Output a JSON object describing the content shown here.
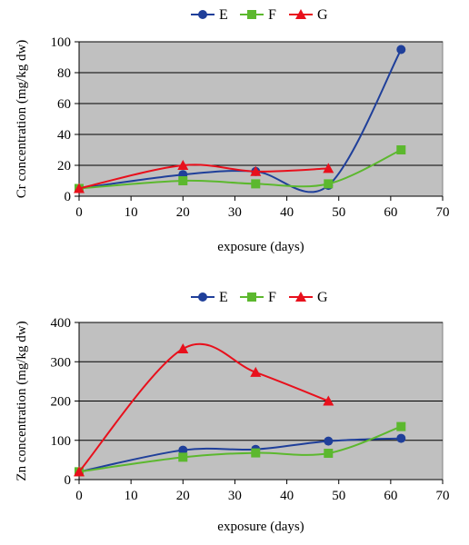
{
  "chart_data": [
    {
      "type": "line",
      "title": "",
      "xlabel": "exposure (days)",
      "ylabel": "Cr concentration (mg/kg dw)",
      "xlim": [
        0,
        70
      ],
      "ylim": [
        0,
        100
      ],
      "xticks": [
        "0",
        "10",
        "20",
        "30",
        "40",
        "50",
        "60",
        "70"
      ],
      "yticks": [
        "0",
        "20",
        "40",
        "60",
        "80",
        "100"
      ],
      "grid": true,
      "legend_position": "top",
      "plot_background": "#c0c0c0",
      "series": [
        {
          "name": "E",
          "color": "#1f3f9a",
          "marker": "circle",
          "x": [
            0,
            20,
            34,
            48,
            62
          ],
          "y": [
            5,
            14,
            16,
            7,
            95
          ]
        },
        {
          "name": "F",
          "color": "#5cb82e",
          "marker": "square",
          "x": [
            0,
            20,
            34,
            48,
            62
          ],
          "y": [
            5,
            10,
            8,
            8,
            30
          ]
        },
        {
          "name": "G",
          "color": "#e8101c",
          "marker": "triangle",
          "x": [
            0,
            20,
            34,
            48
          ],
          "y": [
            5,
            20,
            16,
            18
          ]
        }
      ]
    },
    {
      "type": "line",
      "title": "",
      "xlabel": "exposure (days)",
      "ylabel": "Zn concentration (mg/kg dw)",
      "xlim": [
        0,
        70
      ],
      "ylim": [
        0,
        400
      ],
      "xticks": [
        "0",
        "10",
        "20",
        "30",
        "40",
        "50",
        "60",
        "70"
      ],
      "yticks": [
        "0",
        "100",
        "200",
        "300",
        "400"
      ],
      "grid": true,
      "legend_position": "top",
      "plot_background": "#c0c0c0",
      "series": [
        {
          "name": "E",
          "color": "#1f3f9a",
          "marker": "circle",
          "x": [
            0,
            20,
            34,
            48,
            62
          ],
          "y": [
            20,
            75,
            77,
            98,
            105
          ]
        },
        {
          "name": "F",
          "color": "#5cb82e",
          "marker": "square",
          "x": [
            0,
            20,
            34,
            48,
            62
          ],
          "y": [
            20,
            57,
            68,
            67,
            135
          ]
        },
        {
          "name": "G",
          "color": "#e8101c",
          "marker": "triangle",
          "x": [
            0,
            20,
            34,
            48
          ],
          "y": [
            20,
            333,
            273,
            200
          ]
        }
      ]
    }
  ]
}
